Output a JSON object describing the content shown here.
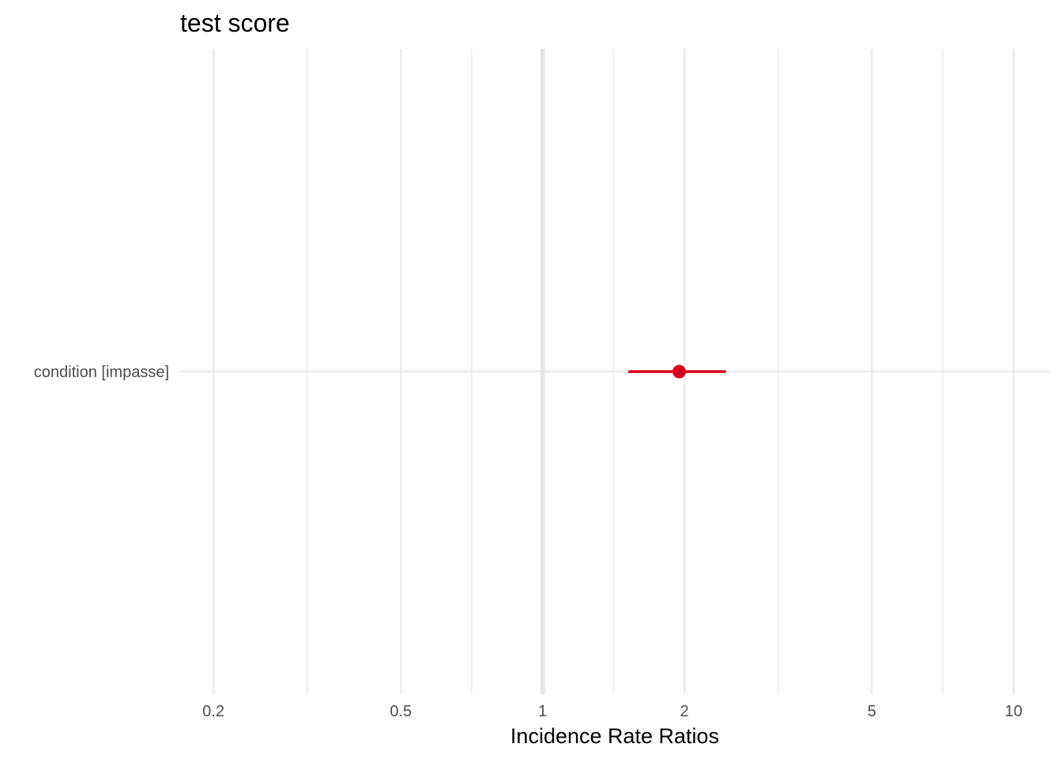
{
  "chart_data": {
    "type": "forest",
    "title": "test score",
    "xlabel": "Incidence Rate Ratios",
    "ylabel": "",
    "x_scale": "log",
    "xlim": [
      0.17,
      12
    ],
    "x_ticks": [
      0.2,
      0.5,
      1,
      2,
      5,
      10
    ],
    "x_tick_labels": [
      "0.2",
      "0.5",
      "1",
      "2",
      "5",
      "10"
    ],
    "x_minor_ticks": [
      0.316,
      0.707,
      1.414,
      3.162,
      7.071
    ],
    "reference_line": 1,
    "grid": true,
    "legend": "none",
    "terms": [
      {
        "label": "condition [impasse]",
        "estimate": 1.95,
        "ci_low": 1.52,
        "ci_high": 2.45
      }
    ],
    "colors": {
      "estimate": "#d7001c",
      "grid_major": "#ebebeb",
      "grid_minor": "#ebebeb",
      "reference": "#e5e5e5",
      "tick_text": "#4d4d4d",
      "title_text": "#000000"
    }
  }
}
